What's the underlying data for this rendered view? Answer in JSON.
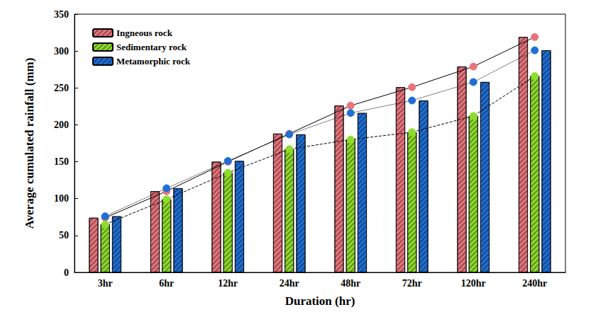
{
  "chart_data": {
    "type": "bar",
    "x_label": "Duration (hr)",
    "y_label": "Average cumulated rainfall (mm)",
    "categories": [
      "3hr",
      "6hr",
      "12hr",
      "24hr",
      "48hr",
      "72hr",
      "120hr",
      "240hr"
    ],
    "series": [
      {
        "name": "Ingneous rock",
        "color": "#e8747c",
        "values": [
          74,
          110,
          150,
          188,
          226,
          251,
          279,
          319
        ],
        "line_style": "solid",
        "marker": "circle"
      },
      {
        "name": "Sedimentary rock",
        "color": "#8fdc2c",
        "values": [
          65,
          99,
          135,
          167,
          180,
          190,
          212,
          266
        ],
        "line_style": "dashed",
        "marker": "circle"
      },
      {
        "name": "Metamorphic rock",
        "color": "#1f6fd6",
        "values": [
          76,
          114,
          151,
          187,
          216,
          233,
          258,
          301
        ],
        "line_style": "dotted",
        "marker": "circle"
      }
    ],
    "ylim": [
      0,
      350
    ],
    "yticks": [
      0,
      50,
      100,
      150,
      200,
      250,
      300,
      350
    ],
    "grid": false,
    "legend": "top-left"
  }
}
